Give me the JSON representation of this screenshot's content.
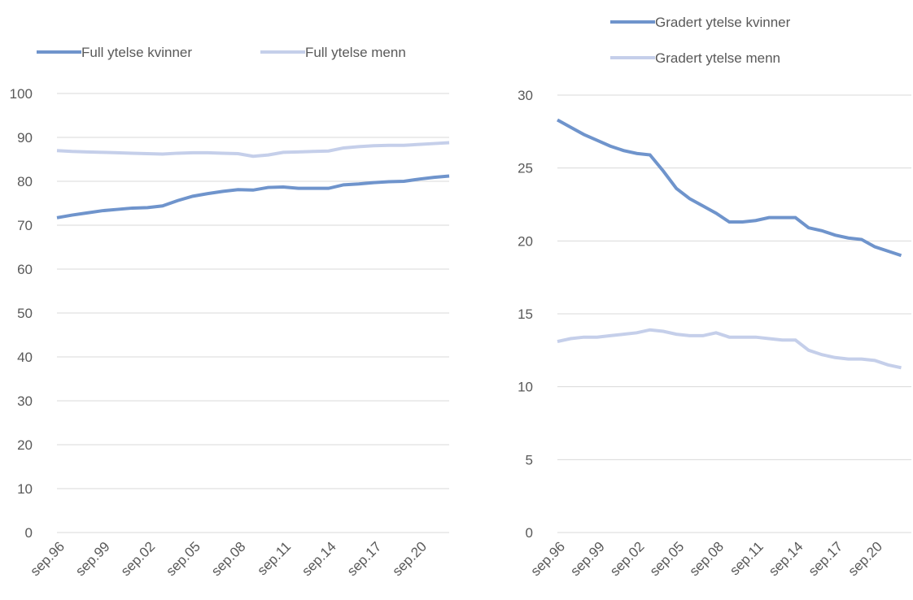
{
  "chart_data": [
    {
      "type": "line",
      "categories": [
        "sep.96",
        null,
        null,
        "sep.99",
        null,
        null,
        "sep.02",
        null,
        null,
        "sep.05",
        null,
        null,
        "sep.08",
        null,
        null,
        "sep.11",
        null,
        null,
        "sep.14",
        null,
        null,
        "sep.17",
        null,
        null,
        "sep.20",
        null,
        null
      ],
      "series": [
        {
          "name": "Full ytelse kvinner",
          "color": "#6f94cc",
          "values": [
            71.7,
            72.3,
            72.8,
            73.3,
            73.6,
            73.9,
            74.0,
            74.4,
            75.6,
            76.6,
            77.2,
            77.7,
            78.1,
            78.0,
            78.6,
            78.7,
            78.4,
            78.4,
            78.4,
            79.2,
            79.4,
            79.7,
            79.9,
            80.0,
            80.5,
            80.9,
            81.2
          ]
        },
        {
          "name": "Full ytelse menn",
          "color": "#c5cfea",
          "values": [
            87.0,
            86.8,
            86.7,
            86.6,
            86.5,
            86.4,
            86.3,
            86.2,
            86.4,
            86.5,
            86.5,
            86.4,
            86.3,
            85.7,
            86.0,
            86.6,
            86.7,
            86.8,
            86.9,
            87.6,
            87.9,
            88.1,
            88.2,
            88.2,
            88.4,
            88.6,
            88.8
          ]
        }
      ],
      "ylim": [
        0,
        100
      ],
      "yticks": [
        0,
        10,
        20,
        30,
        40,
        50,
        60,
        70,
        80,
        90,
        100
      ],
      "grid": true,
      "legend": "top-row"
    },
    {
      "type": "line",
      "categories": [
        "sep.96",
        null,
        null,
        "sep.99",
        null,
        null,
        "sep.02",
        null,
        null,
        "sep.05",
        null,
        null,
        "sep.08",
        null,
        null,
        "sep.11",
        null,
        null,
        "sep.14",
        null,
        null,
        "sep.17",
        null,
        null,
        "sep.20",
        null,
        null
      ],
      "series": [
        {
          "name": "Gradert ytelse kvinner",
          "color": "#6f94cc",
          "values": [
            28.3,
            27.8,
            27.3,
            26.9,
            26.5,
            26.2,
            26.0,
            25.9,
            24.8,
            23.6,
            22.9,
            22.4,
            21.9,
            21.3,
            21.3,
            21.4,
            21.6,
            21.6,
            21.6,
            20.9,
            20.7,
            20.4,
            20.2,
            20.1,
            19.6,
            19.3,
            19.0
          ]
        },
        {
          "name": "Gradert ytelse menn",
          "color": "#c5cfea",
          "values": [
            13.1,
            13.3,
            13.4,
            13.4,
            13.5,
            13.6,
            13.7,
            13.9,
            13.8,
            13.6,
            13.5,
            13.5,
            13.7,
            13.4,
            13.4,
            13.4,
            13.3,
            13.2,
            13.2,
            12.5,
            12.2,
            12.0,
            11.9,
            11.9,
            11.8,
            11.5,
            11.3
          ]
        }
      ],
      "ylim": [
        0,
        30
      ],
      "yticks": [
        0,
        5,
        10,
        15,
        20,
        25,
        30
      ],
      "grid": true,
      "legend": "top-stacked"
    }
  ]
}
